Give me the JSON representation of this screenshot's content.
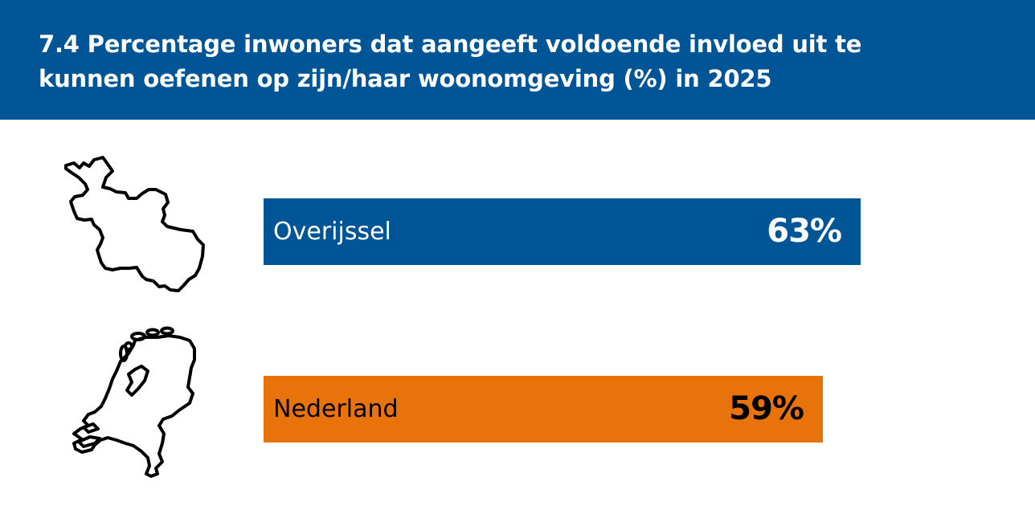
{
  "header": {
    "title": "7.4 Percentage inwoners dat aangeeft voldoende invloed uit te kunnen oefenen op zijn/haar woonomgeving (%) in 2025",
    "background_color": "#005596"
  },
  "icons": {
    "overijssel": "overijssel-outline-icon",
    "nederland": "netherlands-outline-icon"
  },
  "chart_data": {
    "type": "bar",
    "orientation": "horizontal",
    "title": "7.4 Percentage inwoners dat aangeeft voldoende invloed uit te kunnen oefenen op zijn/haar woonomgeving (%) in 2025",
    "categories": [
      "Overijssel",
      "Nederland"
    ],
    "values": [
      63,
      59
    ],
    "value_labels": [
      "63%",
      "59%"
    ],
    "unit": "%",
    "colors": [
      "#005596",
      "#e8730a"
    ],
    "label_colors": [
      "#ffffff",
      "#000000"
    ],
    "xlim": [
      0,
      100
    ],
    "grid": false,
    "legend": "none"
  }
}
